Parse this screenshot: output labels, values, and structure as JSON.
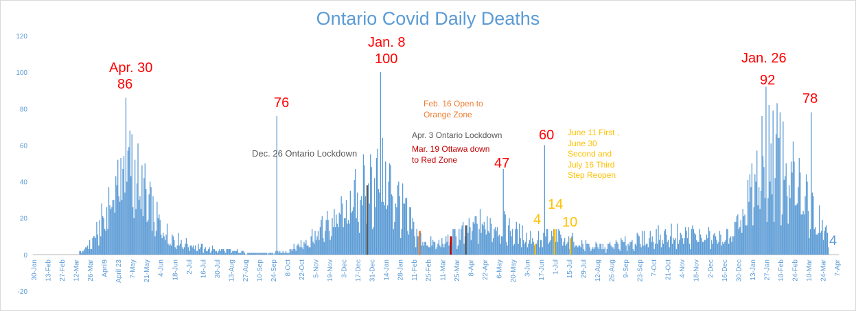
{
  "chart_data": {
    "type": "bar",
    "title": "Ontario Covid Daily Deaths",
    "xlabel": "",
    "ylabel": "",
    "ylim": [
      -20,
      120
    ],
    "yticks": [
      -20,
      0,
      20,
      40,
      60,
      80,
      100,
      120
    ],
    "grid": false,
    "colors": {
      "bars": "#5b9bd5",
      "title": "#5b9bd5",
      "red": "#ff0000",
      "orange": "#ed7d31",
      "gray": "#595959",
      "gold": "#ffc000",
      "darkred": "#c00000"
    },
    "x_tick_labels": [
      "30-Jan",
      "13-Feb",
      "27-Feb",
      "12-Mar",
      "26-Mar",
      "April9",
      "April 23",
      "7-May",
      "21-May",
      "4-Jun",
      "18-Jun",
      "2-Jul",
      "16-Jul",
      "30-Jul",
      "13-Aug",
      "27-Aug",
      "10-Sep",
      "24-Sep",
      "8-Oct",
      "22-Oct",
      "5-Nov",
      "19-Nov",
      "3-Dec",
      "17-Dec",
      "31-Dec",
      "14-Jan",
      "28-Jan",
      "11-Feb",
      "25-Feb",
      "11-Mar",
      "25-Mar",
      "8-Apr",
      "22-Apr",
      "6-May",
      "20-May",
      "3-Jun",
      "17-Jun",
      "1-Jul",
      "15-Jul",
      "29-Jul",
      "12-Aug",
      "26-Aug",
      "9-Sep",
      "23-Sep",
      "7-Oct",
      "21-Oct",
      "4-Nov",
      "18-Nov",
      "2-Dec",
      "16-Dec",
      "30-Dec",
      "13-Jan",
      "27-Jan",
      "10-Feb",
      "24-Feb",
      "10-Mar",
      "24-Mar",
      "7-Apr"
    ],
    "x_start_date": "2020-01-30",
    "key_points": [
      {
        "date": "2020-04-30",
        "value": 86
      },
      {
        "date": "2020-09-27",
        "value": 76
      },
      {
        "date": "2021-01-08",
        "value": 100
      },
      {
        "date": "2021-05-10",
        "value": 47
      },
      {
        "date": "2021-06-20",
        "value": 60
      },
      {
        "date": "2021-06-15",
        "value": 4
      },
      {
        "date": "2021-07-02",
        "value": 14
      },
      {
        "date": "2021-07-17",
        "value": 10
      },
      {
        "date": "2022-01-26",
        "value": 92
      },
      {
        "date": "2022-03-12",
        "value": 78
      },
      {
        "date": "2022-03-29",
        "value": 4
      }
    ],
    "annotations": [
      {
        "id": "apr30_date",
        "text": "Apr. 30"
      },
      {
        "id": "apr30_val",
        "text": "86"
      },
      {
        "id": "sep_val",
        "text": "76"
      },
      {
        "id": "jan8_date",
        "text": "Jan. 8"
      },
      {
        "id": "jan8_val",
        "text": "100"
      },
      {
        "id": "dec26",
        "text": "Dec. 26 Ontario Lockdown"
      },
      {
        "id": "feb16",
        "text": "Feb. 16 Open to\nOrange Zone"
      },
      {
        "id": "apr3",
        "text": "Apr. 3 Ontario Lockdown"
      },
      {
        "id": "mar19",
        "text": "Mar. 19 Ottawa down\nto Red Zone"
      },
      {
        "id": "may_val",
        "text": "47"
      },
      {
        "id": "jun_val60",
        "text": "60"
      },
      {
        "id": "reopen",
        "text": "June 11 First ,\nJune 30\nSecond and\nJuly 16 Third\nStep Reopen"
      },
      {
        "id": "v4a",
        "text": "4"
      },
      {
        "id": "v14",
        "text": "14"
      },
      {
        "id": "v10",
        "text": "10"
      },
      {
        "id": "jan26_date",
        "text": "Jan. 26"
      },
      {
        "id": "jan26_val",
        "text": "92"
      },
      {
        "id": "mar_val78",
        "text": "78"
      },
      {
        "id": "v4b",
        "text": "4"
      }
    ],
    "event_markers": [
      {
        "date": "2020-12-26",
        "color": "gray",
        "value": 38
      },
      {
        "date": "2021-02-16",
        "color": "orange",
        "value": 13
      },
      {
        "date": "2021-03-19",
        "color": "darkred",
        "value": 10
      },
      {
        "date": "2021-04-03",
        "color": "gray",
        "value": 16
      },
      {
        "date": "2021-06-11",
        "color": "gold",
        "value": 6
      },
      {
        "date": "2021-06-30",
        "color": "gold",
        "value": 14
      },
      {
        "date": "2021-07-16",
        "color": "gold",
        "value": 9
      }
    ]
  }
}
